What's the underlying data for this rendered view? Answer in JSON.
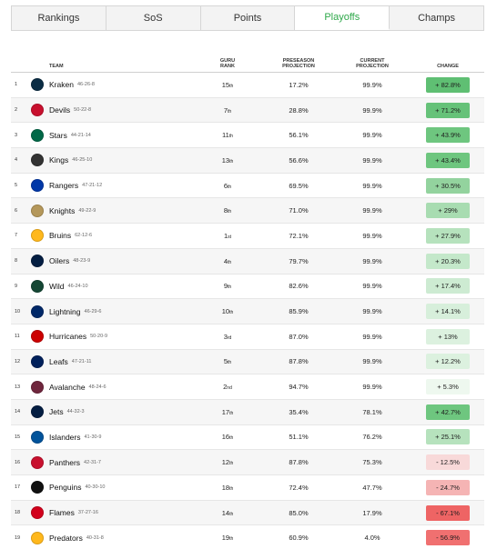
{
  "tabs": [
    {
      "label": "Rankings",
      "active": false
    },
    {
      "label": "SoS",
      "active": false
    },
    {
      "label": "Points",
      "active": false
    },
    {
      "label": "Playoffs",
      "active": true
    },
    {
      "label": "Champs",
      "active": false
    }
  ],
  "headers": {
    "team": "TEAM",
    "guru_line1": "GURU",
    "guru_line2": "RANK",
    "pre_line1": "PRESEASON",
    "pre_line2": "PROJECTION",
    "cur_line1": "CURRENT",
    "cur_line2": "PROJECTION",
    "change": "CHANGE"
  },
  "rows": [
    {
      "rank": "1",
      "team": "Kraken",
      "record": "46-26-8",
      "guru": "15",
      "suffix": "th",
      "pre": "17.2%",
      "cur": "99.9%",
      "change": "+ 82.8%",
      "badge_color": "#5fbf73",
      "logo_color": "#0b2d45"
    },
    {
      "rank": "2",
      "team": "Devils",
      "record": "50-22-8",
      "guru": "7",
      "suffix": "th",
      "pre": "28.8%",
      "cur": "99.9%",
      "change": "+ 71.2%",
      "badge_color": "#66c279",
      "logo_color": "#c8102e"
    },
    {
      "rank": "3",
      "team": "Stars",
      "record": "44-21-14",
      "guru": "11",
      "suffix": "th",
      "pre": "56.1%",
      "cur": "99.9%",
      "change": "+ 43.9%",
      "badge_color": "#6ec67f",
      "logo_color": "#006847"
    },
    {
      "rank": "4",
      "team": "Kings",
      "record": "46-25-10",
      "guru": "13",
      "suffix": "th",
      "pre": "56.6%",
      "cur": "99.9%",
      "change": "+ 43.4%",
      "badge_color": "#6ec67f",
      "logo_color": "#333333"
    },
    {
      "rank": "5",
      "team": "Rangers",
      "record": "47-21-12",
      "guru": "6",
      "suffix": "th",
      "pre": "69.5%",
      "cur": "99.9%",
      "change": "+ 30.5%",
      "badge_color": "#93d39e",
      "logo_color": "#0038a8"
    },
    {
      "rank": "6",
      "team": "Knights",
      "record": "49-22-9",
      "guru": "8",
      "suffix": "th",
      "pre": "71.0%",
      "cur": "99.9%",
      "change": "+ 29%",
      "badge_color": "#a8dcb1",
      "logo_color": "#b4975a"
    },
    {
      "rank": "7",
      "team": "Bruins",
      "record": "62-12-6",
      "guru": "1",
      "suffix": "st",
      "pre": "72.1%",
      "cur": "99.9%",
      "change": "+ 27.9%",
      "badge_color": "#b6e2bd",
      "logo_color": "#ffb81c"
    },
    {
      "rank": "8",
      "team": "Oilers",
      "record": "48-23-9",
      "guru": "4",
      "suffix": "th",
      "pre": "79.7%",
      "cur": "99.9%",
      "change": "+ 20.3%",
      "badge_color": "#c4e8ca",
      "logo_color": "#041e42"
    },
    {
      "rank": "9",
      "team": "Wild",
      "record": "46-24-10",
      "guru": "9",
      "suffix": "th",
      "pre": "82.6%",
      "cur": "99.9%",
      "change": "+ 17.4%",
      "badge_color": "#cdebd2",
      "logo_color": "#154734"
    },
    {
      "rank": "10",
      "team": "Lightning",
      "record": "46-29-6",
      "guru": "10",
      "suffix": "th",
      "pre": "85.9%",
      "cur": "99.9%",
      "change": "+ 14.1%",
      "badge_color": "#d7efdb",
      "logo_color": "#002868"
    },
    {
      "rank": "11",
      "team": "Hurricanes",
      "record": "50-20-9",
      "guru": "3",
      "suffix": "rd",
      "pre": "87.0%",
      "cur": "99.9%",
      "change": "+ 13%",
      "badge_color": "#dcf1df",
      "logo_color": "#cc0000"
    },
    {
      "rank": "12",
      "team": "Leafs",
      "record": "47-21-11",
      "guru": "5",
      "suffix": "th",
      "pre": "87.8%",
      "cur": "99.9%",
      "change": "+ 12.2%",
      "badge_color": "#dcf1df",
      "logo_color": "#00205b"
    },
    {
      "rank": "13",
      "team": "Avalanche",
      "record": "48-24-6",
      "guru": "2",
      "suffix": "nd",
      "pre": "94.7%",
      "cur": "99.9%",
      "change": "+ 5.3%",
      "badge_color": "#eef8ef",
      "logo_color": "#6f263d"
    },
    {
      "rank": "14",
      "team": "Jets",
      "record": "44-32-3",
      "guru": "17",
      "suffix": "th",
      "pre": "35.4%",
      "cur": "78.1%",
      "change": "+ 42.7%",
      "badge_color": "#6ec67f",
      "logo_color": "#041e42"
    },
    {
      "rank": "15",
      "team": "Islanders",
      "record": "41-30-9",
      "guru": "16",
      "suffix": "th",
      "pre": "51.1%",
      "cur": "76.2%",
      "change": "+ 25.1%",
      "badge_color": "#b6e2bd",
      "logo_color": "#00539b"
    },
    {
      "rank": "16",
      "team": "Panthers",
      "record": "42-31-7",
      "guru": "12",
      "suffix": "th",
      "pre": "87.8%",
      "cur": "75.3%",
      "change": "- 12.5%",
      "badge_color": "#f8d9d9",
      "logo_color": "#c8102e"
    },
    {
      "rank": "17",
      "team": "Penguins",
      "record": "40-30-10",
      "guru": "18",
      "suffix": "th",
      "pre": "72.4%",
      "cur": "47.7%",
      "change": "- 24.7%",
      "badge_color": "#f5b4b4",
      "logo_color": "#111111"
    },
    {
      "rank": "18",
      "team": "Flames",
      "record": "37-27-16",
      "guru": "14",
      "suffix": "th",
      "pre": "85.0%",
      "cur": "17.9%",
      "change": "- 67.1%",
      "badge_color": "#ee6464",
      "logo_color": "#d2001c"
    },
    {
      "rank": "19",
      "team": "Predators",
      "record": "40-31-8",
      "guru": "19",
      "suffix": "th",
      "pre": "60.9%",
      "cur": "4.0%",
      "change": "- 56.9%",
      "badge_color": "#f07070",
      "logo_color": "#ffb81c"
    }
  ]
}
